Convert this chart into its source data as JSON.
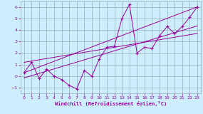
{
  "xlabel": "Windchill (Refroidissement éolien,°C)",
  "bg_color": "#cceeff",
  "grid_color": "#99aabb",
  "line_color": "#990099",
  "xlim": [
    -0.5,
    23.5
  ],
  "ylim": [
    -1.5,
    6.5
  ],
  "xticks": [
    0,
    1,
    2,
    3,
    4,
    5,
    6,
    7,
    8,
    9,
    10,
    11,
    12,
    13,
    14,
    15,
    16,
    17,
    18,
    19,
    20,
    21,
    22,
    23
  ],
  "yticks": [
    -1,
    0,
    1,
    2,
    3,
    4,
    5,
    6
  ],
  "series_x": [
    0,
    1,
    2,
    3,
    4,
    5,
    6,
    7,
    8,
    9,
    10,
    11,
    12,
    13,
    14,
    15,
    16,
    17,
    18,
    19,
    20,
    21,
    22,
    23
  ],
  "series_y": [
    0.3,
    1.2,
    -0.2,
    0.6,
    0.0,
    -0.3,
    -0.8,
    -1.1,
    0.5,
    0.0,
    1.5,
    2.5,
    2.6,
    5.0,
    6.2,
    2.0,
    2.5,
    2.4,
    3.5,
    4.3,
    3.7,
    4.3,
    5.1,
    6.0
  ],
  "line1_x": [
    0,
    23
  ],
  "line1_y": [
    0.3,
    6.0
  ],
  "line2_x": [
    0,
    23
  ],
  "line2_y": [
    -0.15,
    4.35
  ],
  "line3_x": [
    0,
    23
  ],
  "line3_y": [
    1.2,
    3.7
  ]
}
